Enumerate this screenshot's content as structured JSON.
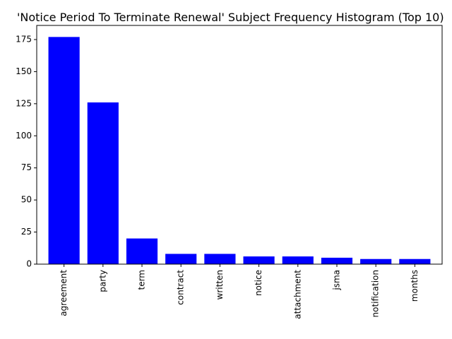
{
  "chart_data": {
    "type": "bar",
    "title": "'Notice Period To Terminate Renewal' Subject Frequency Histogram (Top 10)",
    "xlabel": "",
    "ylabel": "",
    "categories": [
      "agreement",
      "party",
      "term",
      "contract",
      "written",
      "notice",
      "attachment",
      "jsma",
      "notification",
      "months"
    ],
    "values": [
      177,
      126,
      20,
      8,
      8,
      6,
      6,
      5,
      4,
      4
    ],
    "ylim": [
      0,
      186
    ],
    "yticks": [
      0,
      25,
      50,
      75,
      100,
      125,
      150,
      175
    ],
    "bar_color": "#0000ff",
    "grid": false
  }
}
